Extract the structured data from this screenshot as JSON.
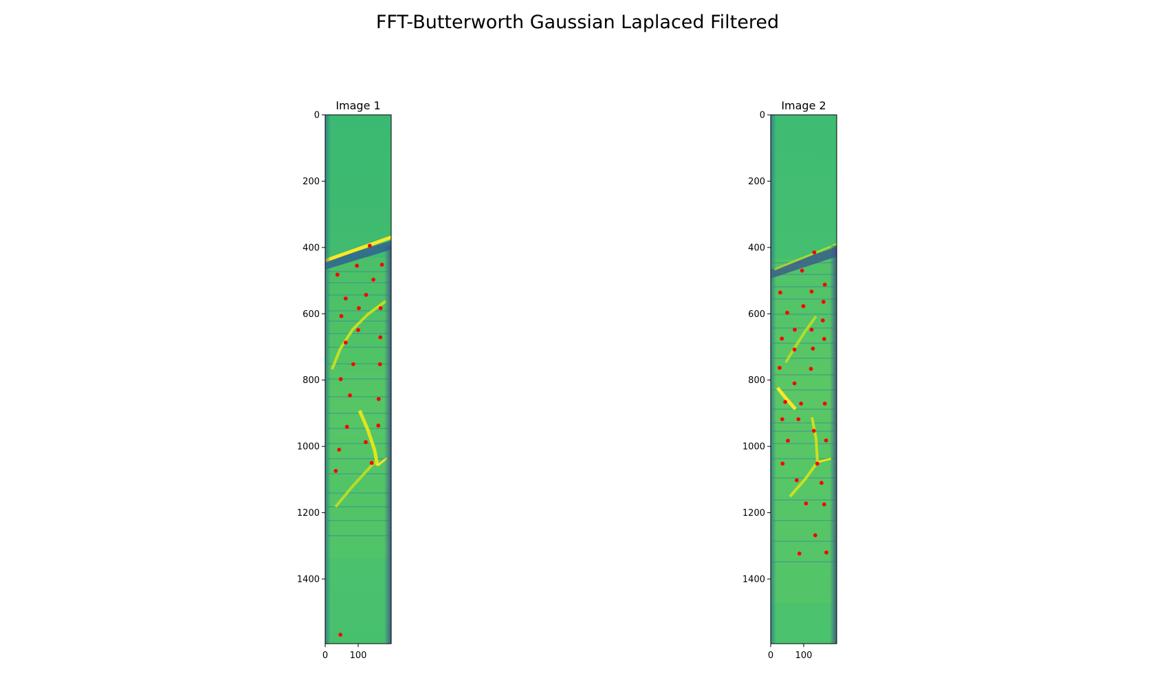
{
  "figure": {
    "title": "FFT-Butterworth Gaussian Laplaced Filtered"
  },
  "chart_data": [
    {
      "type": "scatter",
      "title": "Image 1",
      "xlabel": "",
      "ylabel": "",
      "image_extent": {
        "width": 200,
        "height": 1595
      },
      "xlim": [
        0,
        200
      ],
      "ylim": [
        1595,
        0
      ],
      "xticks": [
        0,
        100
      ],
      "yticks": [
        0,
        200,
        400,
        600,
        800,
        1000,
        1200,
        1400
      ],
      "grid": false,
      "background": "filtered grayscale image rendered with viridis colormap",
      "marker_color": "#ff0000",
      "points": [
        [
          135,
          395
        ],
        [
          172,
          452
        ],
        [
          96,
          455
        ],
        [
          37,
          482
        ],
        [
          146,
          497
        ],
        [
          62,
          554
        ],
        [
          124,
          543
        ],
        [
          102,
          583
        ],
        [
          168,
          583
        ],
        [
          49,
          607
        ],
        [
          100,
          649
        ],
        [
          167,
          671
        ],
        [
          62,
          687
        ],
        [
          85,
          752
        ],
        [
          166,
          752
        ],
        [
          47,
          797
        ],
        [
          75,
          846
        ],
        [
          162,
          857
        ],
        [
          66,
          941
        ],
        [
          161,
          937
        ],
        [
          123,
          987
        ],
        [
          42,
          1010
        ],
        [
          141,
          1050
        ],
        [
          32,
          1074
        ],
        [
          46,
          1568
        ]
      ]
    },
    {
      "type": "scatter",
      "title": "Image 2",
      "xlabel": "",
      "ylabel": "",
      "image_extent": {
        "width": 200,
        "height": 1595
      },
      "xlim": [
        0,
        200
      ],
      "ylim": [
        1595,
        0
      ],
      "xticks": [
        0,
        100
      ],
      "yticks": [
        0,
        200,
        400,
        600,
        800,
        1000,
        1200,
        1400
      ],
      "grid": false,
      "background": "filtered grayscale image rendered with viridis colormap",
      "marker_color": "#ff0000",
      "points": [
        [
          132,
          415
        ],
        [
          95,
          470
        ],
        [
          164,
          512
        ],
        [
          29,
          536
        ],
        [
          124,
          533
        ],
        [
          160,
          564
        ],
        [
          99,
          577
        ],
        [
          50,
          597
        ],
        [
          158,
          620
        ],
        [
          73,
          648
        ],
        [
          124,
          648
        ],
        [
          34,
          675
        ],
        [
          162,
          676
        ],
        [
          72,
          708
        ],
        [
          128,
          705
        ],
        [
          27,
          763
        ],
        [
          122,
          766
        ],
        [
          72,
          810
        ],
        [
          44,
          866
        ],
        [
          92,
          871
        ],
        [
          164,
          871
        ],
        [
          35,
          918
        ],
        [
          84,
          918
        ],
        [
          131,
          953
        ],
        [
          52,
          983
        ],
        [
          168,
          982
        ],
        [
          36,
          1052
        ],
        [
          141,
          1052
        ],
        [
          79,
          1102
        ],
        [
          154,
          1110
        ],
        [
          107,
          1172
        ],
        [
          162,
          1175
        ],
        [
          135,
          1268
        ],
        [
          87,
          1323
        ],
        [
          169,
          1320
        ]
      ]
    }
  ]
}
